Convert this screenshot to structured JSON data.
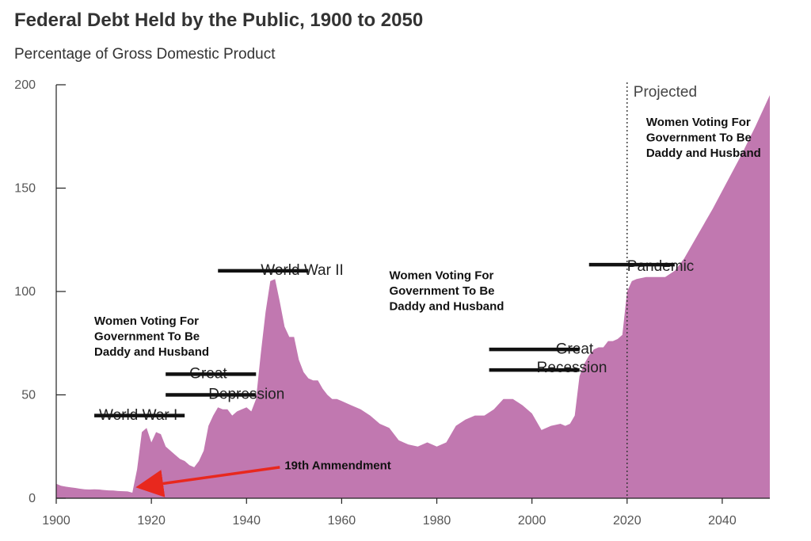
{
  "chart_data": {
    "type": "area",
    "title": "Federal Debt Held by the Public, 1900 to 2050",
    "subtitle": "Percentage of Gross Domestic Product",
    "xlabel": "",
    "ylabel": "",
    "xlim": [
      1900,
      2050
    ],
    "ylim": [
      0,
      200
    ],
    "x_ticks": [
      1900,
      1920,
      1940,
      1960,
      1980,
      2000,
      2020,
      2040
    ],
    "y_ticks": [
      0,
      50,
      100,
      150,
      200
    ],
    "fill_color": "#c178b0",
    "arrow_color": "#e8281e",
    "series": [
      {
        "name": "Federal Debt Held by the Public",
        "x": [
          1900,
          1901,
          1902,
          1903,
          1904,
          1905,
          1906,
          1907,
          1908,
          1909,
          1910,
          1911,
          1912,
          1913,
          1914,
          1915,
          1916,
          1917,
          1918,
          1919,
          1920,
          1921,
          1922,
          1923,
          1924,
          1925,
          1926,
          1927,
          1928,
          1929,
          1930,
          1931,
          1932,
          1933,
          1934,
          1935,
          1936,
          1937,
          1938,
          1939,
          1940,
          1941,
          1942,
          1943,
          1944,
          1945,
          1946,
          1947,
          1948,
          1949,
          1950,
          1951,
          1952,
          1953,
          1954,
          1955,
          1956,
          1957,
          1958,
          1959,
          1960,
          1962,
          1964,
          1966,
          1968,
          1970,
          1972,
          1974,
          1976,
          1978,
          1980,
          1982,
          1984,
          1986,
          1988,
          1990,
          1992,
          1994,
          1996,
          1998,
          2000,
          2002,
          2004,
          2006,
          2007,
          2008,
          2009,
          2010,
          2011,
          2012,
          2013,
          2014,
          2015,
          2016,
          2017,
          2018,
          2019,
          2020,
          2021,
          2022,
          2024,
          2026,
          2028,
          2030,
          2032,
          2035,
          2038,
          2041,
          2044,
          2047,
          2050
        ],
        "values": [
          7,
          6,
          5.6,
          5.3,
          5,
          4.6,
          4.3,
          4.2,
          4.3,
          4.2,
          4,
          3.8,
          3.7,
          3.5,
          3.4,
          3.3,
          2.7,
          14,
          32,
          34,
          27,
          32,
          31,
          25,
          23,
          21,
          19,
          18,
          16,
          15,
          18,
          23,
          35,
          40,
          44,
          43,
          43,
          40,
          42,
          43,
          44,
          42,
          48,
          70,
          90,
          105,
          106,
          95,
          83,
          78,
          78,
          67,
          61,
          58,
          57,
          57,
          53,
          50,
          48,
          48,
          47,
          45,
          43,
          40,
          36,
          34,
          28,
          26,
          25,
          27,
          25,
          27,
          35,
          38,
          40,
          40,
          43,
          48,
          48,
          45,
          41,
          33,
          35,
          36,
          35,
          36,
          40,
          59,
          65,
          69,
          72,
          73,
          73,
          76,
          76,
          77,
          79,
          100,
          105,
          106,
          107,
          107,
          107,
          110,
          116,
          128,
          140,
          153,
          166,
          180,
          195
        ]
      }
    ],
    "event_labels": [
      {
        "text": "World War I",
        "x": 1909,
        "y": 38
      },
      {
        "text": "Great",
        "x": 1928,
        "y": 58
      },
      {
        "text": "Depression",
        "x": 1932,
        "y": 48
      },
      {
        "text": "World War II",
        "x": 1943,
        "y": 108
      },
      {
        "text": "Great",
        "x": 2005,
        "y": 70
      },
      {
        "text": "Recession",
        "x": 2001,
        "y": 61
      },
      {
        "text": "Pandemic",
        "x": 2020,
        "y": 110
      }
    ],
    "strike_bars": [
      {
        "x1": 1908,
        "x2": 1927,
        "y": 40
      },
      {
        "x1": 1923,
        "x2": 1942,
        "y": 60
      },
      {
        "x1": 1923,
        "x2": 1942,
        "y": 50
      },
      {
        "x1": 1934,
        "x2": 1953,
        "y": 110
      },
      {
        "x1": 1991,
        "x2": 2010,
        "y": 72
      },
      {
        "x1": 1991,
        "x2": 2010,
        "y": 62
      },
      {
        "x1": 2012,
        "x2": 2030,
        "y": 113
      }
    ],
    "annotations": [
      {
        "lines": [
          "Women Voting For",
          "Government To Be",
          "Daddy and Husband"
        ],
        "x": 1908,
        "y": 84
      },
      {
        "lines": [
          "Women Voting For",
          "Government To Be",
          "Daddy and Husband"
        ],
        "x": 1970,
        "y": 106
      },
      {
        "lines": [
          "Women Voting For",
          "Government To Be",
          "Daddy and Husband"
        ],
        "x": 2024,
        "y": 180
      },
      {
        "lines": [
          "19th Ammendment"
        ],
        "x": 1948,
        "y": 14
      }
    ],
    "arrow": {
      "from": [
        1947,
        15
      ],
      "to": [
        1919,
        6
      ]
    },
    "projection": {
      "label": "Projected",
      "x": 2020
    }
  }
}
